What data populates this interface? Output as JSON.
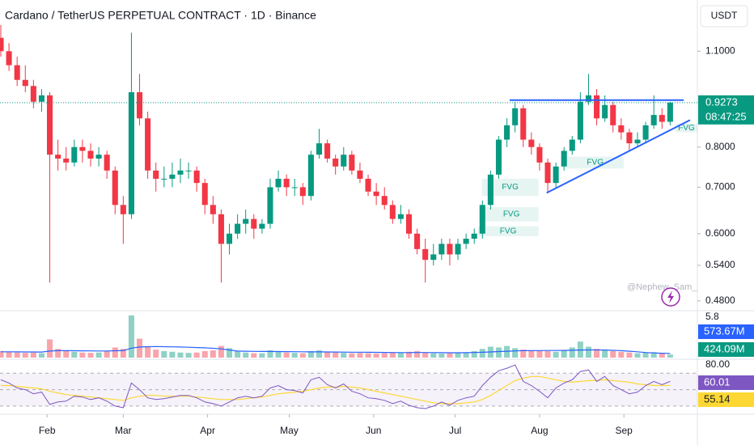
{
  "chart_data": {
    "type": "candlestick",
    "title": "Cardano / TetherUS PERPETUAL CONTRACT · 1D · Binance",
    "currency": "USDT",
    "countdown": "08:47:25",
    "watermark": "@Nephew_Sam_",
    "log_scale": true,
    "up_color": "#089981",
    "down_color": "#f23645",
    "x": [
      15,
      18,
      21,
      24,
      27,
      30,
      33,
      36,
      39,
      42,
      45,
      48,
      51,
      54,
      57,
      60,
      63,
      66,
      69,
      72,
      75,
      78,
      81,
      84,
      87,
      90,
      93,
      96,
      99,
      102,
      105,
      108,
      111,
      114,
      117,
      120,
      123,
      126,
      129,
      132,
      135,
      138,
      141,
      144,
      147,
      150,
      153,
      156,
      159,
      162,
      165,
      168,
      171,
      174,
      177,
      180,
      183,
      186,
      189,
      192,
      195,
      198,
      201,
      204,
      207,
      210,
      213,
      216,
      219,
      222,
      225,
      228,
      231,
      234,
      237,
      240,
      243,
      246,
      249,
      252,
      255,
      258,
      261
    ],
    "xlim": [
      14.7,
      271
    ],
    "xticks": [
      {
        "value": 32,
        "label": "Feb"
      },
      {
        "value": 60,
        "label": "Mar"
      },
      {
        "value": 91,
        "label": "Apr"
      },
      {
        "value": 121,
        "label": "May"
      },
      {
        "value": 152,
        "label": "Jun"
      },
      {
        "value": 182,
        "label": "Jul"
      },
      {
        "value": 213,
        "label": "Aug"
      },
      {
        "value": 244,
        "label": "Sep"
      }
    ],
    "ohlc": [
      [
        1.15,
        1.2,
        1.08,
        1.1
      ],
      [
        1.1,
        1.13,
        1.03,
        1.05
      ],
      [
        1.05,
        1.08,
        0.98,
        1.0
      ],
      [
        1.0,
        1.05,
        0.96,
        0.98
      ],
      [
        0.98,
        1.0,
        0.91,
        0.93
      ],
      [
        0.93,
        0.97,
        0.9,
        0.95
      ],
      [
        0.95,
        0.96,
        0.51,
        0.78
      ],
      [
        0.78,
        0.82,
        0.74,
        0.77
      ],
      [
        0.77,
        0.8,
        0.74,
        0.76
      ],
      [
        0.76,
        0.82,
        0.75,
        0.8
      ],
      [
        0.8,
        0.82,
        0.76,
        0.79
      ],
      [
        0.79,
        0.81,
        0.75,
        0.77
      ],
      [
        0.77,
        0.8,
        0.75,
        0.78
      ],
      [
        0.78,
        0.79,
        0.72,
        0.74
      ],
      [
        0.74,
        0.75,
        0.64,
        0.66
      ],
      [
        0.66,
        0.68,
        0.58,
        0.64
      ],
      [
        0.64,
        1.17,
        0.63,
        0.96
      ],
      [
        0.96,
        1.02,
        0.86,
        0.88
      ],
      [
        0.88,
        0.9,
        0.72,
        0.74
      ],
      [
        0.74,
        0.76,
        0.69,
        0.72
      ],
      [
        0.72,
        0.75,
        0.7,
        0.72
      ],
      [
        0.72,
        0.76,
        0.7,
        0.73
      ],
      [
        0.73,
        0.77,
        0.71,
        0.74
      ],
      [
        0.74,
        0.76,
        0.72,
        0.74
      ],
      [
        0.74,
        0.75,
        0.69,
        0.71
      ],
      [
        0.71,
        0.72,
        0.64,
        0.66
      ],
      [
        0.66,
        0.68,
        0.62,
        0.64
      ],
      [
        0.64,
        0.65,
        0.51,
        0.58
      ],
      [
        0.58,
        0.62,
        0.56,
        0.6
      ],
      [
        0.6,
        0.64,
        0.59,
        0.62
      ],
      [
        0.62,
        0.65,
        0.6,
        0.63
      ],
      [
        0.63,
        0.64,
        0.59,
        0.61
      ],
      [
        0.61,
        0.63,
        0.6,
        0.62
      ],
      [
        0.62,
        0.72,
        0.61,
        0.7
      ],
      [
        0.7,
        0.74,
        0.69,
        0.72
      ],
      [
        0.72,
        0.73,
        0.68,
        0.7
      ],
      [
        0.7,
        0.72,
        0.68,
        0.7
      ],
      [
        0.7,
        0.71,
        0.66,
        0.68
      ],
      [
        0.68,
        0.79,
        0.67,
        0.78
      ],
      [
        0.78,
        0.85,
        0.77,
        0.81
      ],
      [
        0.81,
        0.82,
        0.76,
        0.77
      ],
      [
        0.77,
        0.78,
        0.73,
        0.75
      ],
      [
        0.75,
        0.8,
        0.74,
        0.78
      ],
      [
        0.78,
        0.79,
        0.73,
        0.74
      ],
      [
        0.74,
        0.76,
        0.71,
        0.72
      ],
      [
        0.72,
        0.73,
        0.68,
        0.69
      ],
      [
        0.69,
        0.71,
        0.66,
        0.68
      ],
      [
        0.68,
        0.7,
        0.65,
        0.66
      ],
      [
        0.66,
        0.67,
        0.62,
        0.63
      ],
      [
        0.63,
        0.66,
        0.62,
        0.64
      ],
      [
        0.64,
        0.65,
        0.59,
        0.6
      ],
      [
        0.6,
        0.61,
        0.56,
        0.57
      ],
      [
        0.57,
        0.59,
        0.51,
        0.55
      ],
      [
        0.55,
        0.58,
        0.54,
        0.56
      ],
      [
        0.56,
        0.59,
        0.55,
        0.58
      ],
      [
        0.58,
        0.59,
        0.54,
        0.56
      ],
      [
        0.56,
        0.59,
        0.55,
        0.58
      ],
      [
        0.58,
        0.6,
        0.57,
        0.59
      ],
      [
        0.59,
        0.61,
        0.58,
        0.6
      ],
      [
        0.6,
        0.67,
        0.59,
        0.66
      ],
      [
        0.66,
        0.74,
        0.65,
        0.73
      ],
      [
        0.73,
        0.83,
        0.72,
        0.82
      ],
      [
        0.82,
        0.88,
        0.8,
        0.86
      ],
      [
        0.86,
        0.93,
        0.84,
        0.91
      ],
      [
        0.91,
        0.92,
        0.8,
        0.82
      ],
      [
        0.82,
        0.84,
        0.78,
        0.8
      ],
      [
        0.8,
        0.81,
        0.74,
        0.76
      ],
      [
        0.76,
        0.77,
        0.69,
        0.71
      ],
      [
        0.71,
        0.76,
        0.7,
        0.75
      ],
      [
        0.75,
        0.8,
        0.74,
        0.79
      ],
      [
        0.79,
        0.83,
        0.78,
        0.82
      ],
      [
        0.82,
        0.96,
        0.81,
        0.93
      ],
      [
        0.93,
        1.02,
        0.92,
        0.95
      ],
      [
        0.95,
        0.97,
        0.86,
        0.88
      ],
      [
        0.88,
        0.95,
        0.87,
        0.92
      ],
      [
        0.92,
        0.93,
        0.84,
        0.86
      ],
      [
        0.86,
        0.88,
        0.82,
        0.84
      ],
      [
        0.84,
        0.85,
        0.79,
        0.81
      ],
      [
        0.81,
        0.84,
        0.8,
        0.82
      ],
      [
        0.82,
        0.87,
        0.81,
        0.86
      ],
      [
        0.86,
        0.95,
        0.85,
        0.89
      ],
      [
        0.89,
        0.91,
        0.85,
        0.87
      ],
      [
        0.87,
        0.93,
        0.86,
        0.9273
      ]
    ],
    "ylim": [
      0.467,
      1.304
    ],
    "yticks": [
      {
        "value": 1.1,
        "label": "1.1000"
      },
      {
        "value": 0.8,
        "label": "0.8000"
      },
      {
        "value": 0.7,
        "label": "0.7000"
      },
      {
        "value": 0.6,
        "label": "0.6000"
      },
      {
        "value": 0.54,
        "label": "0.5400"
      },
      {
        "value": 0.48,
        "label": "0.4800"
      }
    ],
    "trendlines": [
      {
        "color": "#2962ff",
        "x": [
          202,
          266
        ],
        "y": [
          0.935,
          0.935
        ]
      },
      {
        "color": "#2962ff",
        "x": [
          215.6,
          268.3
        ],
        "y": [
          0.687,
          0.875
        ]
      }
    ],
    "fvg": [
      {
        "label": "FVG",
        "x": [
          191.8,
          212.6
        ],
        "y": [
          0.68,
          0.72
        ]
      },
      {
        "label": "FVG",
        "x": [
          192.7,
          212.6
        ],
        "y": [
          0.625,
          0.655
        ]
      },
      {
        "label": "FVG",
        "x": [
          190.3,
          212.6
        ],
        "y": [
          0.595,
          0.615
        ]
      },
      {
        "label": "FVG",
        "x": [
          223,
          243.9
        ],
        "y": [
          0.745,
          0.775
        ]
      },
      {
        "label": "FVG",
        "x": [
          263,
          271
        ],
        "y": [
          0.84,
          0.865
        ]
      }
    ],
    "volume": [
      900,
      800,
      700,
      650,
      700,
      600,
      2500,
      1200,
      900,
      800,
      700,
      650,
      700,
      900,
      1400,
      1200,
      5800,
      2600,
      1500,
      1100,
      900,
      800,
      700,
      650,
      700,
      900,
      1000,
      1600,
      1300,
      900,
      700,
      600,
      600,
      1000,
      900,
      700,
      650,
      600,
      900,
      1000,
      800,
      700,
      650,
      600,
      650,
      600,
      550,
      600,
      700,
      650,
      800,
      900,
      700,
      600,
      550,
      600,
      650,
      700,
      900,
      1200,
      1500,
      1400,
      1600,
      1300,
      1100,
      900,
      1000,
      900,
      800,
      1000,
      1400,
      2200,
      1500,
      1200,
      1000,
      900,
      800,
      700,
      600,
      700,
      750,
      650,
      424.09
    ],
    "volume_ma": [
      800,
      800,
      790,
      780,
      780,
      770,
      900,
      950,
      950,
      940,
      930,
      920,
      910,
      910,
      940,
      960,
      1300,
      1450,
      1500,
      1520,
      1500,
      1480,
      1450,
      1420,
      1380,
      1340,
      1280,
      1200,
      1050,
      900,
      880,
      860,
      850,
      840,
      830,
      820,
      810,
      800,
      790,
      790,
      780,
      770,
      760,
      750,
      740,
      730,
      720,
      710,
      700,
      690,
      690,
      700,
      700,
      690,
      680,
      670,
      670,
      680,
      700,
      730,
      780,
      830,
      880,
      920,
      950,
      960,
      970,
      980,
      980,
      990,
      1010,
      1050,
      1060,
      1060,
      1040,
      1000,
      950,
      880,
      800,
      700,
      640,
      600,
      573.67
    ],
    "volume_ma_color": "#2962ff",
    "volume_ylim": [
      0,
      6000
    ],
    "volume_yticks": [
      {
        "value": 5800,
        "label": "5.8"
      }
    ],
    "volume_label": {
      "value": 424.09,
      "label": "424.09M"
    },
    "volume_ma_label": {
      "value": 573.67,
      "label": "573.67M"
    },
    "rsi": [
      62,
      58,
      52,
      50,
      45,
      47,
      32,
      35,
      36,
      42,
      41,
      38,
      40,
      36,
      30,
      28,
      58,
      50,
      40,
      38,
      39,
      41,
      43,
      43,
      40,
      35,
      33,
      30,
      35,
      40,
      42,
      40,
      42,
      52,
      55,
      50,
      49,
      46,
      62,
      65,
      56,
      52,
      57,
      48,
      45,
      40,
      39,
      37,
      33,
      36,
      31,
      28,
      27,
      30,
      35,
      31,
      37,
      40,
      42,
      55,
      65,
      73,
      76,
      80,
      60,
      55,
      48,
      40,
      52,
      58,
      62,
      72,
      74,
      60,
      66,
      55,
      50,
      45,
      47,
      55,
      60,
      56,
      60.01
    ],
    "rsi_ma": [
      55,
      55,
      54,
      53,
      52,
      51,
      48,
      46,
      44,
      43,
      42,
      41,
      40,
      39,
      38,
      37,
      40,
      42,
      43,
      43,
      42,
      42,
      42,
      42,
      41,
      40,
      39,
      38,
      38,
      38,
      39,
      40,
      41,
      43,
      45,
      46,
      47,
      48,
      50,
      52,
      53,
      53,
      54,
      53,
      52,
      50,
      48,
      46,
      44,
      42,
      40,
      38,
      36,
      34,
      33,
      33,
      33,
      34,
      35,
      38,
      43,
      49,
      55,
      61,
      64,
      66,
      66,
      64,
      62,
      60,
      59,
      60,
      61,
      61,
      62,
      61,
      60,
      59,
      57,
      56,
      55,
      55,
      55.14
    ],
    "rsi_color": "#7e57c2",
    "rsi_ma_color": "#fdd835",
    "rsi_ylim": [
      25,
      84
    ],
    "rsi_yticks": [
      {
        "value": 80,
        "label": "80.00"
      }
    ],
    "rsi_bands": [
      70,
      50,
      30
    ]
  }
}
